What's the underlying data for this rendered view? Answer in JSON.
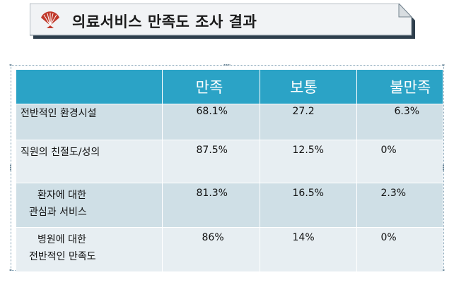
{
  "title": "의료서비스 만족도 조사 결과",
  "header": {
    "blank": "",
    "col1": "만족",
    "col2": "보통",
    "col3": "불만족"
  },
  "rows": [
    {
      "label": "전반적인 환경시설",
      "label2": "",
      "satisfied": "68.1%",
      "neutral": "27.2",
      "dissatisfied": "6.3%"
    },
    {
      "label": "직원의 친절도/성의",
      "label2": "",
      "satisfied": "87.5%",
      "neutral": "12.5%",
      "dissatisfied": "0%"
    },
    {
      "label": "환자에 대한",
      "label2": "관심과 서비스",
      "satisfied": "81.3%",
      "neutral": "16.5%",
      "dissatisfied": "2.3%"
    },
    {
      "label": "병원에 대한",
      "label2": "전반적인 만족도",
      "satisfied": "86%",
      "neutral": "14%",
      "dissatisfied": "0%"
    }
  ],
  "colors": {
    "header": "#2ba3c6",
    "row_odd": "#cfdfe6",
    "row_even": "#e7eef2",
    "icon": "#c0392b"
  },
  "icons": {
    "title_icon": "folding-fan-icon"
  }
}
